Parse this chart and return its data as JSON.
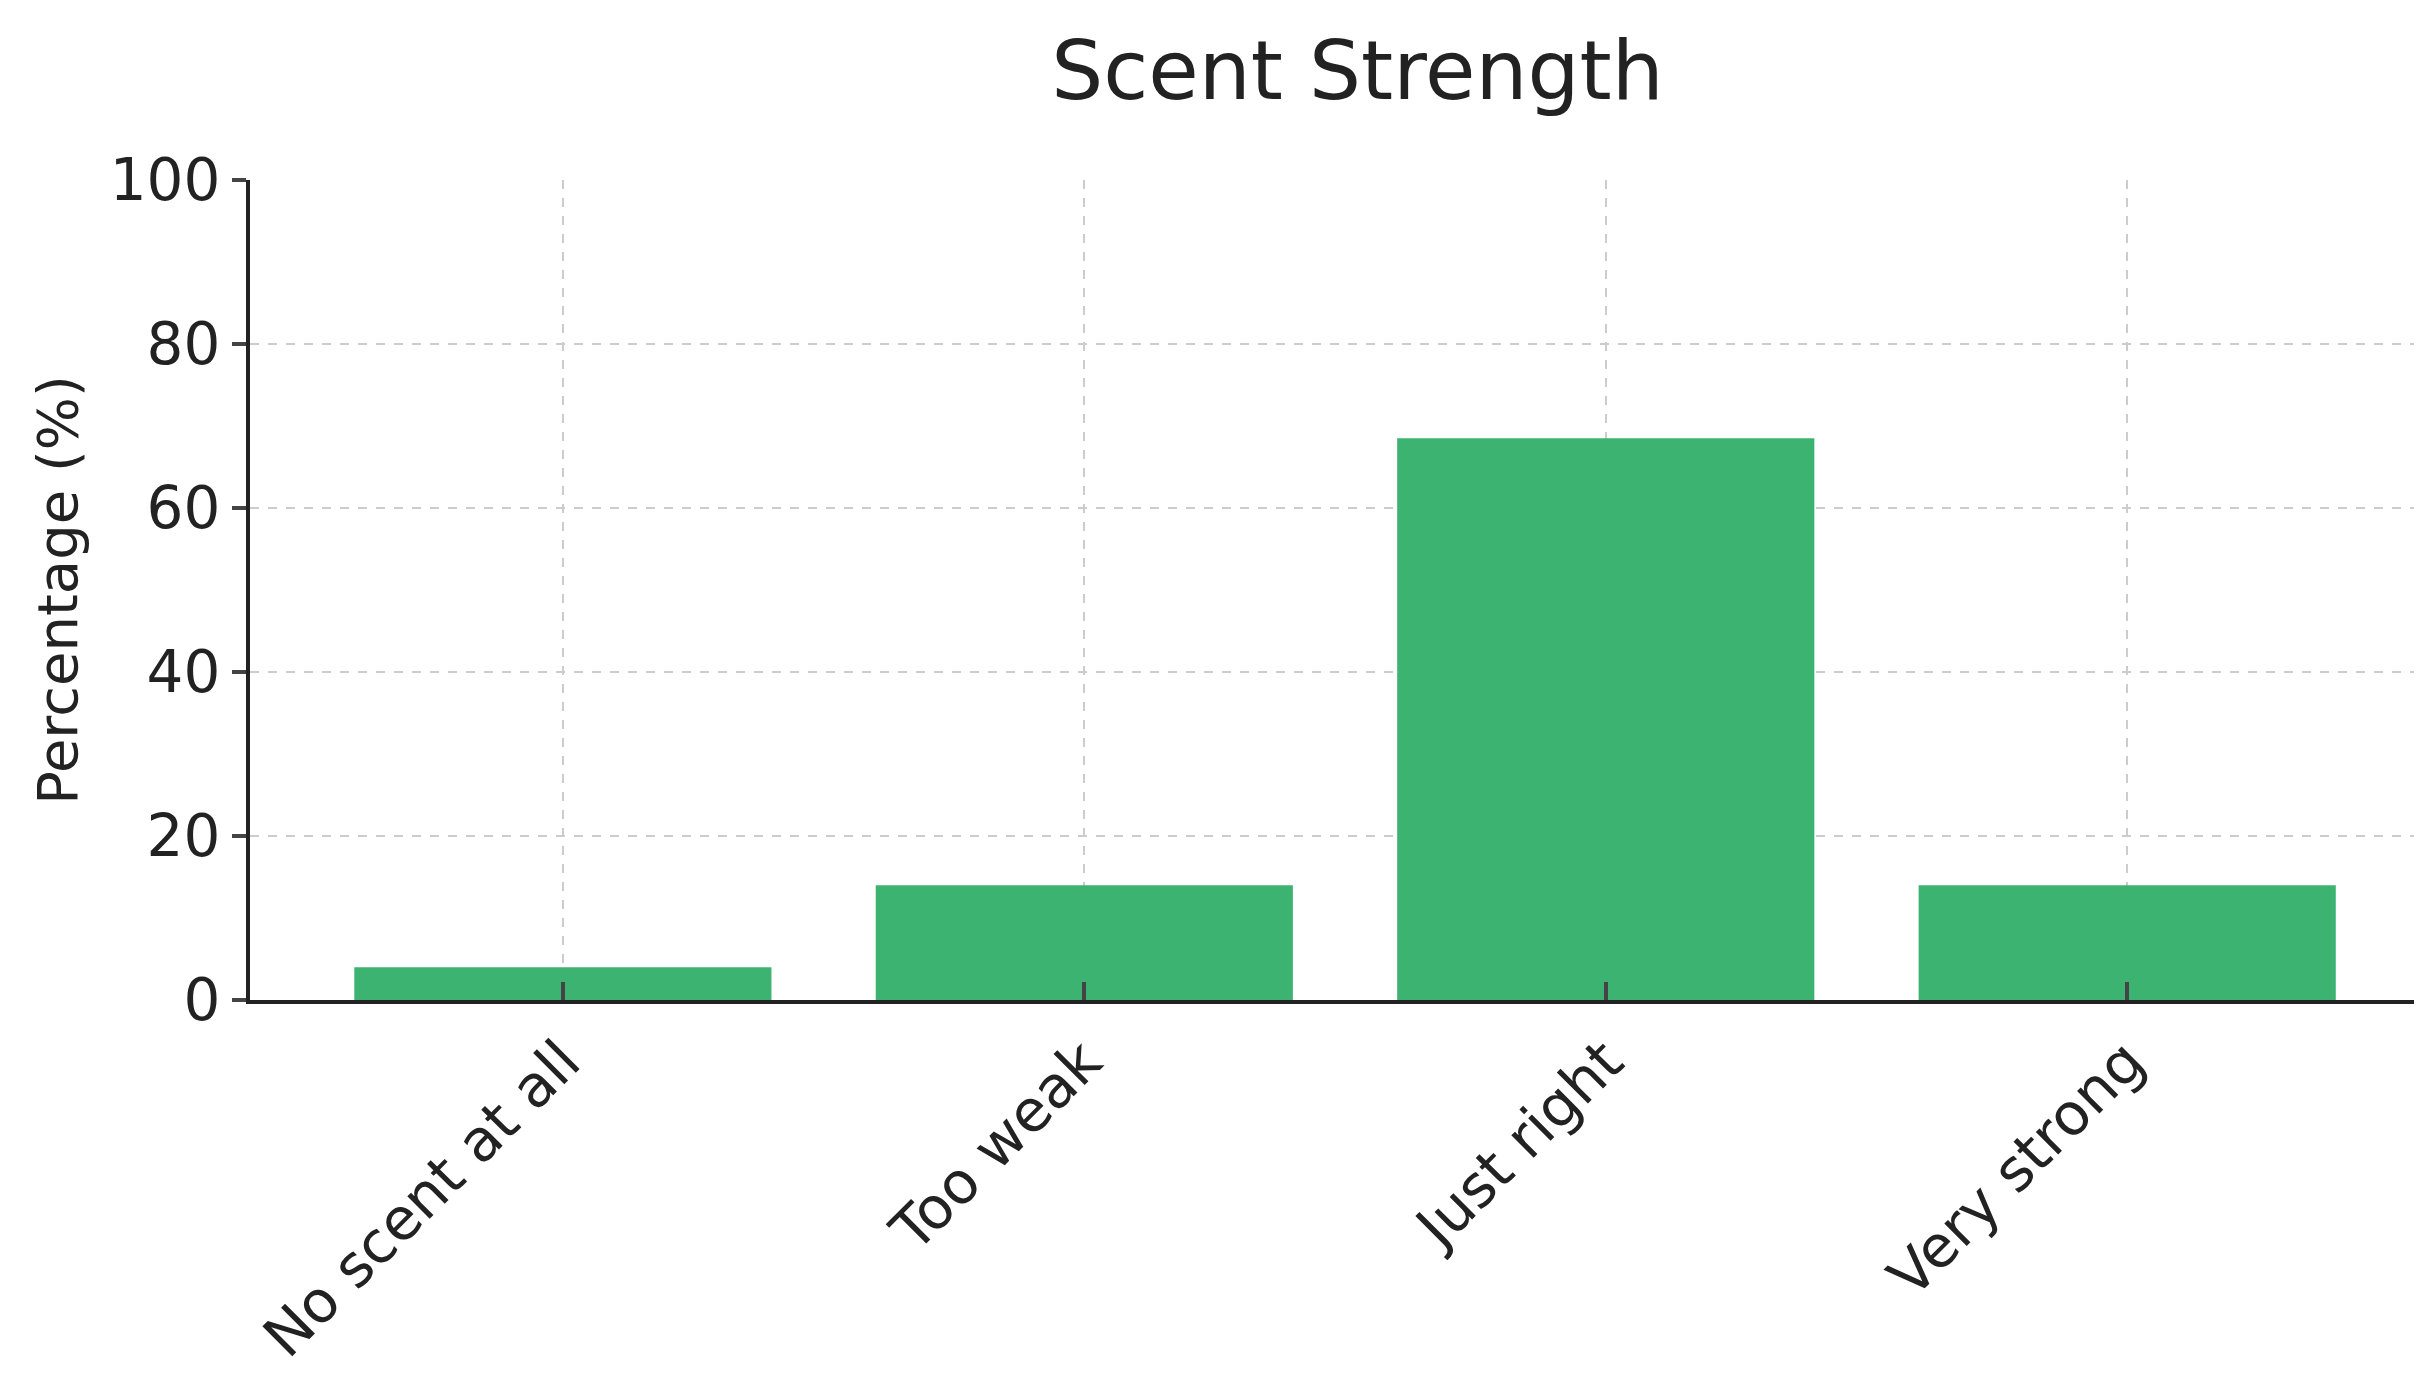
{
  "chart_data": {
    "type": "bar",
    "title": "Scent Strength",
    "ylabel": "Percentage (%)",
    "categories": [
      "No scent at all",
      "Too weak",
      "Just right",
      "Very strong"
    ],
    "values": [
      4,
      14,
      68.5,
      14
    ],
    "color": "#3cb371",
    "ylim": [
      0,
      100
    ],
    "yticks": [
      0,
      20,
      40,
      60,
      80,
      100
    ],
    "grid": true
  }
}
